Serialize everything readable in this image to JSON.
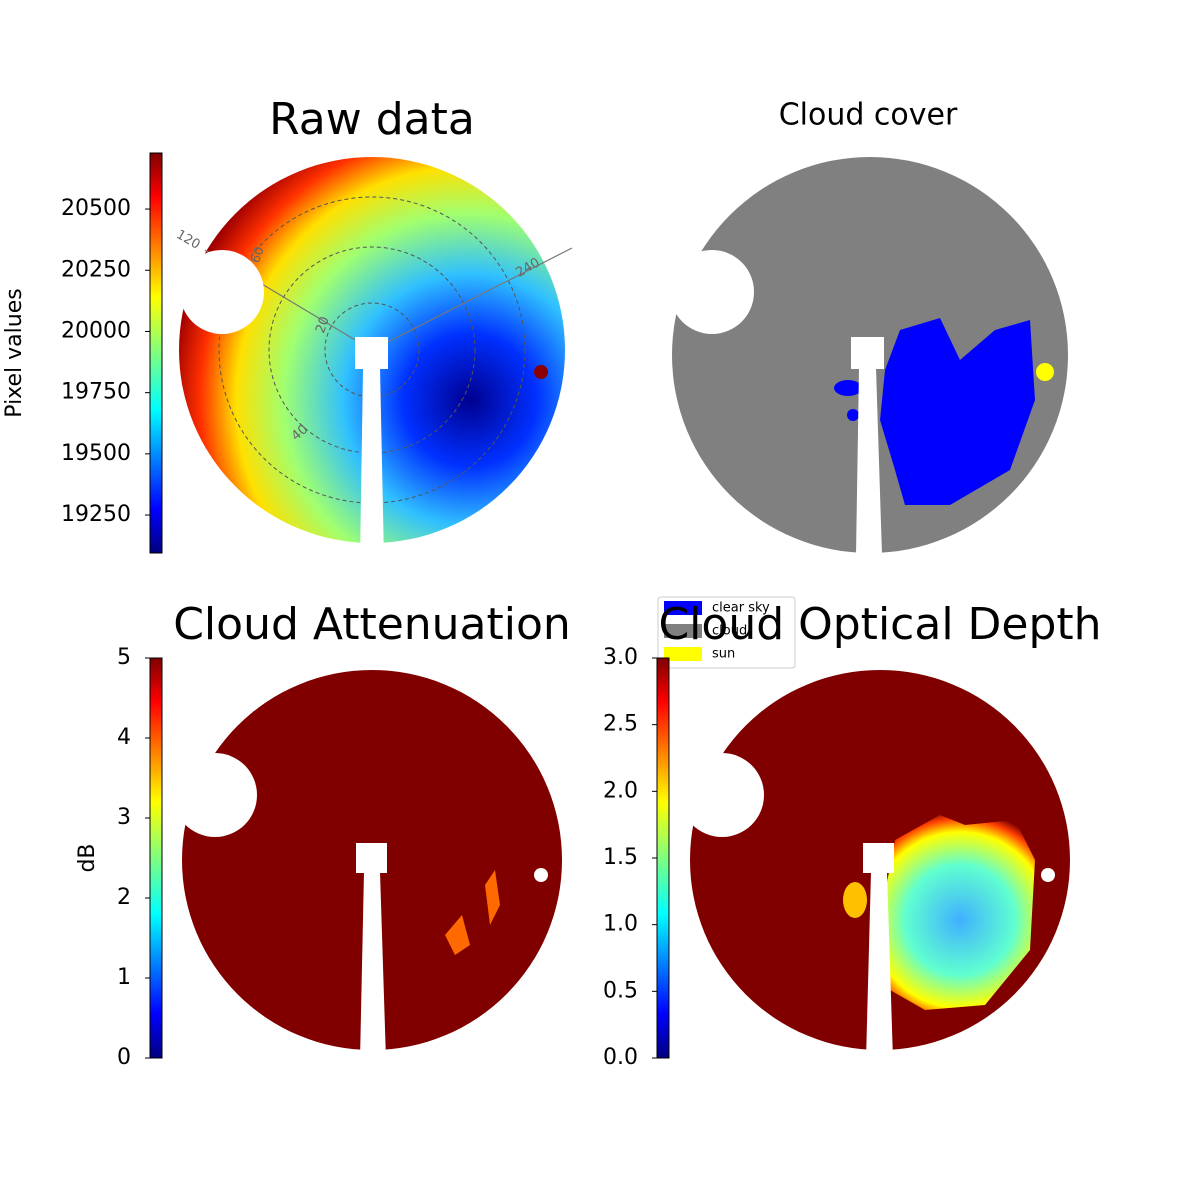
{
  "chart_data": [
    {
      "type": "image",
      "title": "Raw data",
      "ylabel": "Pixel values",
      "colormap": "jet",
      "ylim": [
        19095,
        20729
      ],
      "yticks": [
        19250,
        19500,
        19750,
        20000,
        20250,
        20500
      ],
      "annotations": [
        "120",
        "60",
        "240",
        "20",
        "40"
      ]
    },
    {
      "type": "image",
      "title": "Cloud cover",
      "series": [
        {
          "name": "clear sky",
          "color": "#0000ff"
        },
        {
          "name": "cloud",
          "color": "#808080"
        },
        {
          "name": "sun",
          "color": "#ffff00"
        }
      ]
    },
    {
      "type": "image",
      "title": "Cloud Attenuation",
      "ylabel": "dB",
      "colormap": "jet",
      "ylim": [
        0,
        5
      ],
      "yticks": [
        0,
        1,
        2,
        3,
        4,
        5
      ]
    },
    {
      "type": "image",
      "title": "Cloud Optical Depth",
      "colormap": "jet",
      "ylim": [
        0,
        3
      ],
      "yticks": [
        {
          "value": 0,
          "label": "0.0"
        },
        0.5,
        {
          "value": 1,
          "label": "1.0"
        },
        1.5,
        {
          "value": 2,
          "label": "2.0"
        },
        2.5,
        {
          "value": 3,
          "label": "3.0"
        }
      ]
    }
  ]
}
